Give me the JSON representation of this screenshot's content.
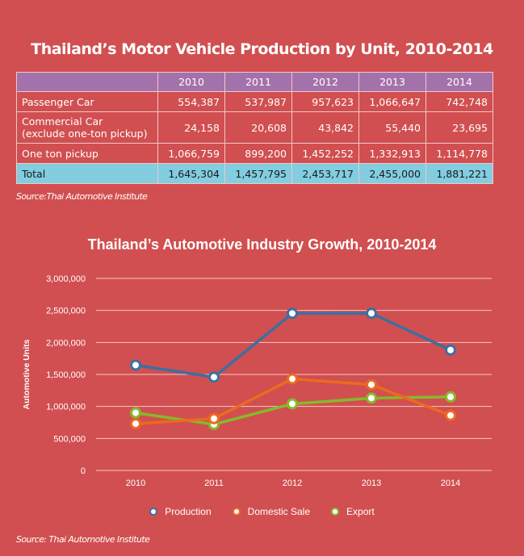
{
  "table_title": "Thailand’s Motor Vehicle Production by Unit, 2010-2014",
  "table": {
    "columns": [
      "",
      "2010",
      "2011",
      "2012",
      "2013",
      "2014"
    ],
    "rows": [
      {
        "label": "Passenger Car",
        "values": [
          "554,387",
          "537,987",
          "957,623",
          "1,066,647",
          "742,748"
        ]
      },
      {
        "label": "Commercial Car (exclude one-ton pickup)",
        "label_line1": "Commercial Car",
        "label_line2": "(exclude one-ton pickup)",
        "values": [
          "24,158",
          "20,608",
          "43,842",
          "55,440",
          "23,695"
        ]
      },
      {
        "label": "One ton pickup",
        "values": [
          "1,066,759",
          "899,200",
          "1,452,252",
          "1,332,913",
          "1,114,778"
        ]
      },
      {
        "label": "Total",
        "values": [
          "1,645,304",
          "1,457,795",
          "2,453,717",
          "2,455,000",
          "1,881,221"
        ]
      }
    ],
    "source": "Source:Thai Automotive Institute"
  },
  "colors": {
    "header": "#a472ab",
    "total": "#82cde0",
    "background": "#d14f50"
  },
  "chart_data": {
    "type": "line",
    "title": "Thailand’s Automotive Industry Growth, 2010-2014",
    "xlabel": "",
    "ylabel": "Automotive Units",
    "categories": [
      "2010",
      "2011",
      "2012",
      "2013",
      "2014"
    ],
    "ylim": [
      0,
      3000000
    ],
    "yticks": [
      0,
      500000,
      1000000,
      1500000,
      2000000,
      2500000,
      3000000
    ],
    "ytick_labels": [
      "0",
      "500,000",
      "1,000,000",
      "1,500,000",
      "2,000,000",
      "2,500,000",
      "3,000,000"
    ],
    "grid": true,
    "legend": "bottom",
    "series": [
      {
        "name": "Production",
        "color": "#3d6fa0",
        "values": [
          1645304,
          1457795,
          2453717,
          2455000,
          1881221
        ]
      },
      {
        "name": "Domestic Sale",
        "color": "#ec6a1f",
        "values": [
          730000,
          810000,
          1430000,
          1340000,
          860000
        ]
      },
      {
        "name": "Export",
        "color": "#86b92a",
        "values": [
          900000,
          720000,
          1040000,
          1130000,
          1150000
        ]
      }
    ],
    "source": "Source: Thai Automotive Institute"
  }
}
